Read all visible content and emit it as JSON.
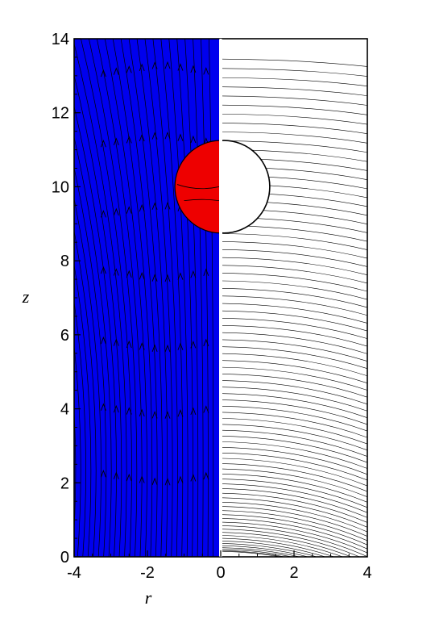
{
  "chart_data": {
    "type": "contour",
    "xlabel": "r",
    "ylabel": "z",
    "xlim": [
      -4,
      4
    ],
    "ylim": [
      0,
      14
    ],
    "x_ticks": [
      -4,
      -2,
      0,
      2,
      4
    ],
    "y_ticks": [
      0,
      2,
      4,
      6,
      8,
      10,
      12,
      14
    ],
    "x_tick_labels": [
      "-4",
      "-2",
      "0",
      "2",
      "4"
    ],
    "y_tick_labels": [
      "0",
      "2",
      "4",
      "6",
      "8",
      "10",
      "12",
      "14"
    ],
    "left_panel": {
      "r_range": [
        -4,
        0
      ],
      "fill_color": "#0000ee",
      "content": "streamlines with arrows"
    },
    "right_panel": {
      "r_range": [
        0,
        4
      ],
      "fill_color": "#ffffff",
      "content": "contour lines"
    },
    "drop": {
      "center_r": 0,
      "center_z": 10,
      "radius": 1.25,
      "fill_color": "#ee0000"
    },
    "colors": {
      "field": "#0000ee",
      "drop": "#ee0000",
      "lines": "#000000"
    }
  }
}
